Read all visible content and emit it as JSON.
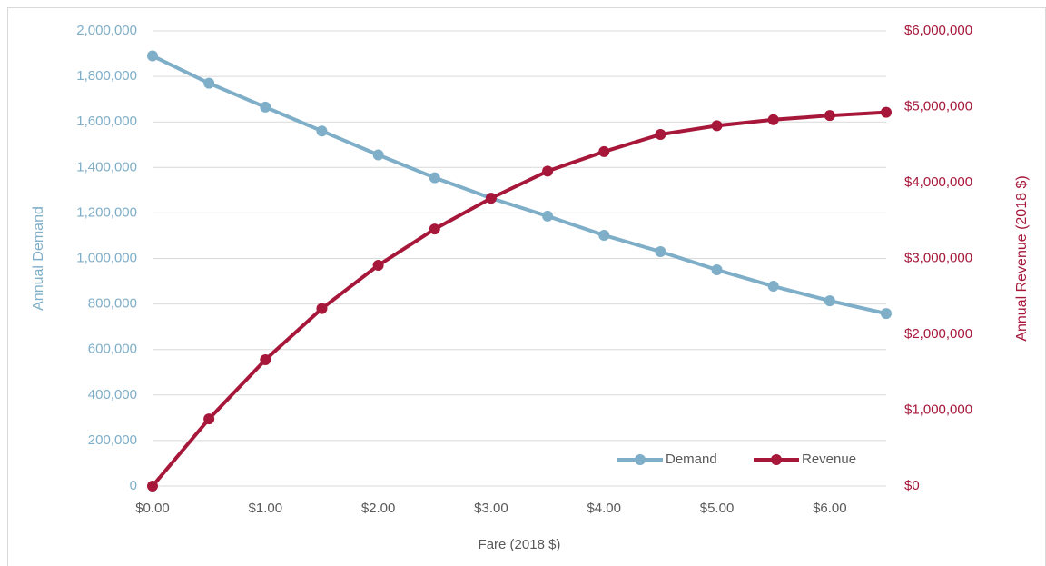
{
  "chart_data": {
    "type": "line",
    "x": [
      0,
      0.5,
      1,
      1.5,
      2,
      2.5,
      3,
      3.5,
      4,
      4.5,
      5,
      5.5,
      6,
      6.5
    ],
    "series": [
      {
        "name": "Demand",
        "color": "#7eaec8",
        "axis": "y",
        "values": [
          1890000,
          1770000,
          1665000,
          1560000,
          1455000,
          1355000,
          1265000,
          1186000,
          1102000,
          1030000,
          950000,
          878000,
          814000,
          758000
        ]
      },
      {
        "name": "Revenue",
        "color": "#a6173a",
        "axis": "y2",
        "values": [
          0,
          885000,
          1665000,
          2340000,
          2910000,
          3388000,
          3795000,
          4151000,
          4408000,
          4635000,
          4750000,
          4829000,
          4884000,
          4927000
        ]
      }
    ],
    "xlabel": "Fare (2018 $)",
    "ylabel": "Annual Demand",
    "y2label": "Annual Revenue (2018 $)",
    "xlim": [
      0,
      6.5
    ],
    "xticks": [
      {
        "value": 0,
        "label": "$0.00"
      },
      {
        "value": 1,
        "label": "$1.00"
      },
      {
        "value": 2,
        "label": "$2.00"
      },
      {
        "value": 3,
        "label": "$3.00"
      },
      {
        "value": 4,
        "label": "$4.00"
      },
      {
        "value": 5,
        "label": "$5.00"
      },
      {
        "value": 6,
        "label": "$6.00"
      }
    ],
    "ylim": [
      0,
      2000000
    ],
    "yticks": [
      0,
      {
        "value": 200000,
        "label": "200,000"
      },
      {
        "value": 400000,
        "label": "400,000"
      },
      {
        "value": 600000,
        "label": "600,000"
      },
      {
        "value": 800000,
        "label": "800,000"
      },
      {
        "value": 1000000,
        "label": "1,000,000"
      },
      {
        "value": 1200000,
        "label": "1,200,000"
      },
      {
        "value": 1400000,
        "label": "1,400,000"
      },
      {
        "value": 1600000,
        "label": "1,600,000"
      },
      {
        "value": 1800000,
        "label": "1,800,000"
      },
      {
        "value": 2000000,
        "label": "2,000,000"
      }
    ],
    "y2lim": [
      0,
      6000000
    ],
    "y2ticks": [
      {
        "value": 0,
        "label": "$0"
      },
      {
        "value": 1000000,
        "label": "$1,000,000"
      },
      {
        "value": 2000000,
        "label": "$2,000,000"
      },
      {
        "value": 3000000,
        "label": "$3,000,000"
      },
      {
        "value": 4000000,
        "label": "$4,000,000"
      },
      {
        "value": 5000000,
        "label": "$5,000,000"
      },
      {
        "value": 6000000,
        "label": "$6,000,000"
      }
    ],
    "grid": true,
    "legend": "lower right"
  }
}
